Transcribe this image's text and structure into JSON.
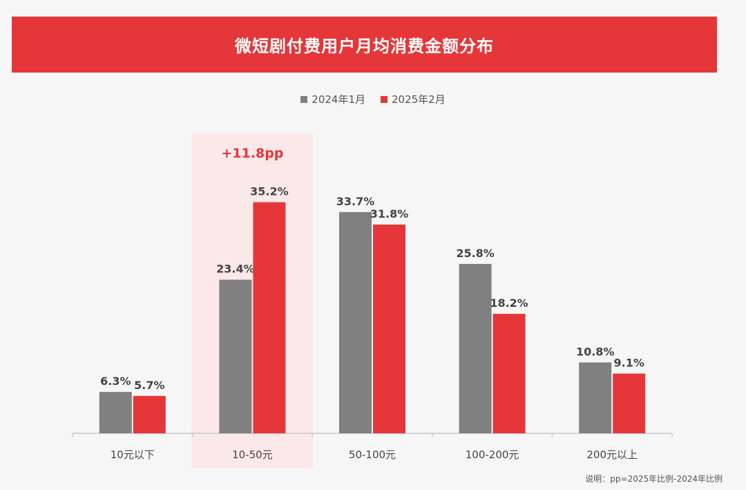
{
  "title": "微短剧付费用户月均消费金额分布",
  "note": "说明：pp=2025年比例-2024年比例",
  "colors": {
    "banner": "#e5373a",
    "series_2024": "#808080",
    "series_2025": "#e5373a",
    "highlight": "#fbe9e9",
    "annotation": "#e5373a"
  },
  "chart_data": {
    "type": "bar",
    "categories": [
      "10元以下",
      "10-50元",
      "50-100元",
      "100-200元",
      "200元以上"
    ],
    "series": [
      {
        "name": "2024年1月",
        "values": [
          6.3,
          23.4,
          33.7,
          25.8,
          10.8
        ],
        "labels": [
          "6.3%",
          "23.4%",
          "33.7%",
          "25.8%",
          "10.8%"
        ]
      },
      {
        "name": "2025年2月",
        "values": [
          5.7,
          35.2,
          31.8,
          18.2,
          9.1
        ],
        "labels": [
          "5.7%",
          "35.2%",
          "31.8%",
          "18.2%",
          "9.1%"
        ]
      }
    ],
    "unit": "%",
    "legend_position": "top-center",
    "highlight": {
      "category": "10-50元",
      "annotation": "+11.8pp"
    },
    "grid": false
  }
}
